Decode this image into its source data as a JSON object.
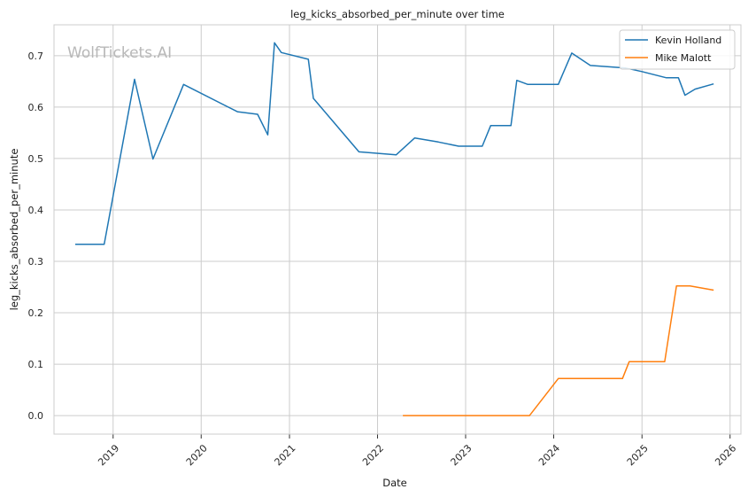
{
  "chart_data": {
    "type": "line",
    "title": "leg_kicks_absorbed_per_minute over time",
    "xlabel": "Date",
    "ylabel": "leg_kicks_absorbed_per_minute",
    "xlim": [
      "2018-05-01",
      "2026-02-15"
    ],
    "ylim": [
      -0.036,
      0.76
    ],
    "x_ticks": [
      "2019",
      "2020",
      "2021",
      "2022",
      "2023",
      "2024",
      "2025",
      "2026"
    ],
    "y_ticks": [
      "0.0",
      "0.1",
      "0.2",
      "0.3",
      "0.4",
      "0.5",
      "0.6",
      "0.7"
    ],
    "grid": true,
    "legend_position": "top-right",
    "watermark": "WolfTickets.AI",
    "series": [
      {
        "name": "Kevin Holland",
        "color": "#1f77b4",
        "points": [
          [
            "2018-07-28",
            0.333
          ],
          [
            "2018-11-25",
            0.333
          ],
          [
            "2019-03-31",
            0.654
          ],
          [
            "2019-06-15",
            0.499
          ],
          [
            "2019-10-20",
            0.644
          ],
          [
            "2020-05-30",
            0.591
          ],
          [
            "2020-08-22",
            0.586
          ],
          [
            "2020-10-03",
            0.546
          ],
          [
            "2020-10-31",
            0.725
          ],
          [
            "2020-11-28",
            0.706
          ],
          [
            "2021-03-20",
            0.693
          ],
          [
            "2021-04-10",
            0.617
          ],
          [
            "2021-10-16",
            0.513
          ],
          [
            "2022-03-19",
            0.507
          ],
          [
            "2022-06-04",
            0.54
          ],
          [
            "2022-09-10",
            0.532
          ],
          [
            "2022-12-03",
            0.524
          ],
          [
            "2023-03-11",
            0.524
          ],
          [
            "2023-04-15",
            0.564
          ],
          [
            "2023-07-08",
            0.564
          ],
          [
            "2023-08-01",
            0.652
          ],
          [
            "2023-09-16",
            0.644
          ],
          [
            "2024-01-20",
            0.644
          ],
          [
            "2024-03-16",
            0.705
          ],
          [
            "2024-06-01",
            0.681
          ],
          [
            "2024-10-26",
            0.676
          ],
          [
            "2025-01-01",
            0.669
          ],
          [
            "2025-04-12",
            0.657
          ],
          [
            "2025-06-01",
            0.657
          ],
          [
            "2025-06-28",
            0.623
          ],
          [
            "2025-08-09",
            0.635
          ],
          [
            "2025-10-25",
            0.645
          ]
        ]
      },
      {
        "name": "Mike Malott",
        "color": "#ff7f0e",
        "points": [
          [
            "2022-04-16",
            0.0
          ],
          [
            "2023-09-23",
            0.0
          ],
          [
            "2024-01-20",
            0.072
          ],
          [
            "2024-10-12",
            0.072
          ],
          [
            "2024-11-09",
            0.105
          ],
          [
            "2025-04-05",
            0.105
          ],
          [
            "2025-05-24",
            0.252
          ],
          [
            "2025-07-19",
            0.252
          ],
          [
            "2025-10-25",
            0.244
          ]
        ]
      }
    ]
  }
}
